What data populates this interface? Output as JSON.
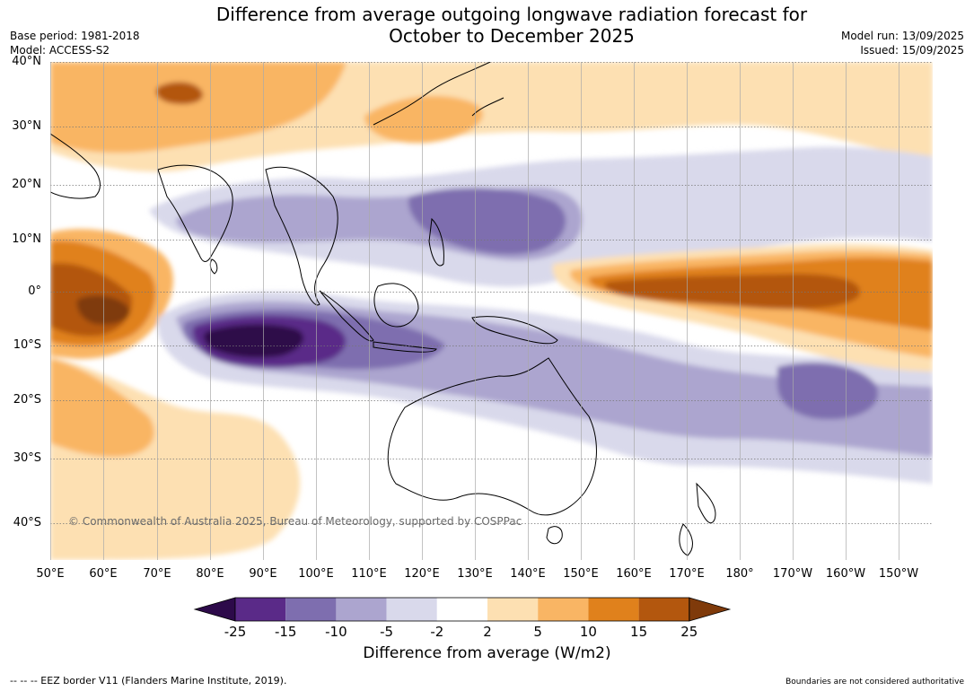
{
  "header": {
    "title_line1": "Difference from average outgoing longwave radiation forecast for",
    "title_line2": "October to December 2025",
    "base_period": "Base period: 1981-2018",
    "model": "Model: ACCESS-S2",
    "model_run": "Model run: 13/09/2025",
    "issued": "Issued: 15/09/2025"
  },
  "map": {
    "lat_labels": [
      "40°N",
      "30°N",
      "20°N",
      "10°N",
      "0°",
      "10°S",
      "20°S",
      "30°S",
      "40°S"
    ],
    "lon_labels": [
      "50°E",
      "60°E",
      "70°E",
      "80°E",
      "90°E",
      "100°E",
      "110°E",
      "120°E",
      "130°E",
      "140°E",
      "150°E",
      "160°E",
      "170°E",
      "180°",
      "170°W",
      "160°W",
      "150°W"
    ],
    "copyright": "© Commonwealth of Australia 2025, Bureau of Meteorology, supported by COSPPac"
  },
  "colorbar": {
    "ticks": [
      "-25",
      "-15",
      "-10",
      "-5",
      "-2",
      "2",
      "5",
      "10",
      "15",
      "25"
    ],
    "colors": [
      "#2d0a4a",
      "#5a2a88",
      "#7e6eaf",
      "#aca5cf",
      "#d9d9eb",
      "#ffffff",
      "#fde0b2",
      "#f9b564",
      "#e0811c",
      "#b3570e",
      "#7f3a0a"
    ],
    "title": "Difference from average (W/m2)"
  },
  "footer": {
    "eez_note": "--  --  -- EEZ border V11 (Flanders Marine Institute, 2019).",
    "boundary_note": "Boundaries are not considered authoritative"
  }
}
